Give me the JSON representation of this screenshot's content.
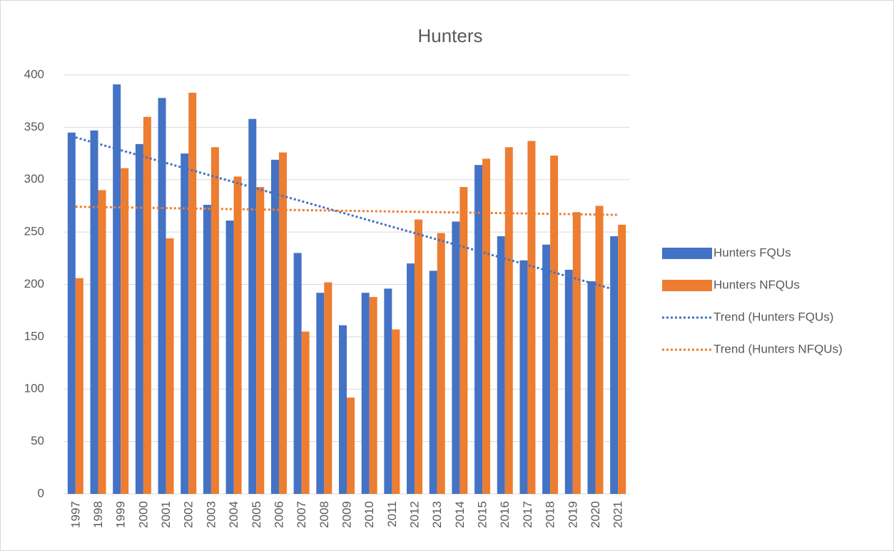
{
  "chart_data": {
    "type": "bar",
    "title": "Hunters",
    "categories": [
      "1997",
      "1998",
      "1999",
      "2000",
      "2001",
      "2002",
      "2003",
      "2004",
      "2005",
      "2006",
      "2007",
      "2008",
      "2009",
      "2010",
      "2011",
      "2012",
      "2013",
      "2014",
      "2015",
      "2016",
      "2017",
      "2018",
      "2019",
      "2020",
      "2021"
    ],
    "series": [
      {
        "name": "Hunters FQUs",
        "color": "#4472c4",
        "values": [
          345,
          347,
          391,
          334,
          378,
          325,
          276,
          261,
          358,
          319,
          230,
          192,
          161,
          192,
          196,
          220,
          213,
          260,
          314,
          246,
          223,
          238,
          214,
          203,
          246
        ]
      },
      {
        "name": "Hunters NFQUs",
        "color": "#ed7d31",
        "values": [
          206,
          290,
          311,
          360,
          244,
          383,
          331,
          303,
          293,
          326,
          155,
          202,
          92,
          188,
          157,
          262,
          249,
          293,
          320,
          331,
          337,
          323,
          269,
          275,
          257
        ]
      }
    ],
    "trendlines": [
      {
        "name": "Trend (Hunters FQUs)",
        "series": 0,
        "color": "#4472c4"
      },
      {
        "name": "Trend (Hunters NFQUs)",
        "series": 1,
        "color": "#ed7d31"
      }
    ],
    "ylim": [
      0,
      400
    ],
    "yticks": [
      0,
      50,
      100,
      150,
      200,
      250,
      300,
      350,
      400
    ],
    "grid": true,
    "legend": "right"
  }
}
